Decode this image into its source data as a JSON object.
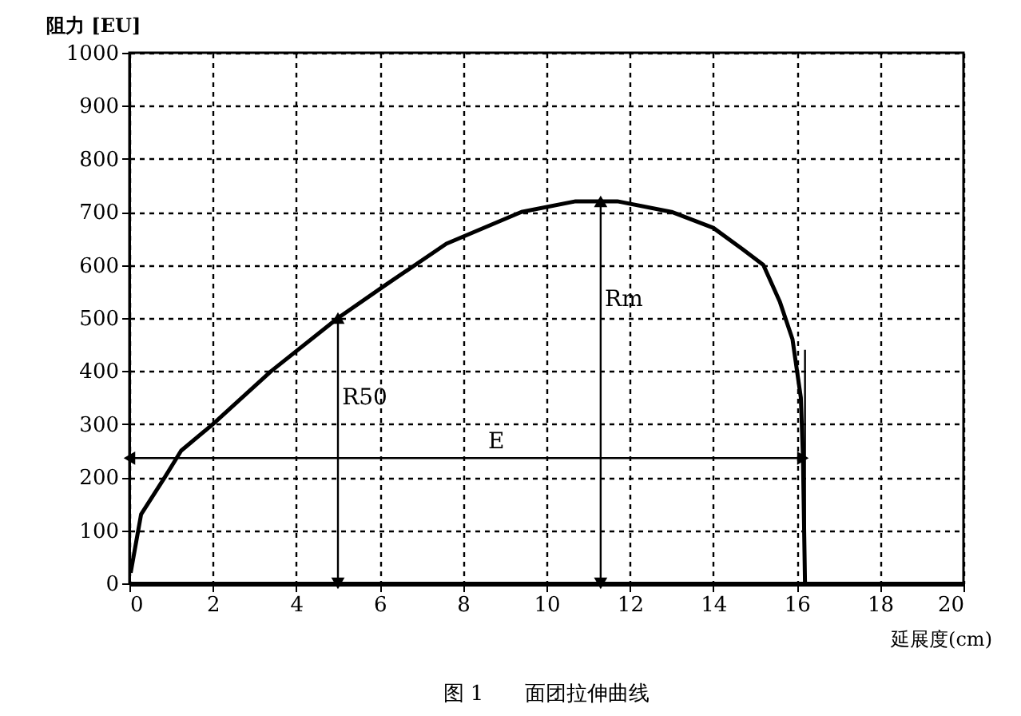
{
  "chart_data": {
    "type": "line",
    "title": "图 1　　面团拉伸曲线",
    "xlabel": "延展度(cm)",
    "ylabel": "阻力 [EU]",
    "xlim": [
      0,
      20
    ],
    "ylim": [
      0,
      1000
    ],
    "xticks": [
      0,
      2,
      4,
      6,
      8,
      10,
      12,
      14,
      16,
      18,
      20
    ],
    "yticks": [
      0,
      100,
      200,
      300,
      400,
      500,
      600,
      700,
      800,
      900,
      1000
    ],
    "grid": true,
    "series": [
      {
        "color": "#000000",
        "marker": "none",
        "x": [
          0.03,
          0.28,
          0.85,
          1.24,
          2.0,
          3.4,
          5.0,
          6.1,
          7.6,
          9.4,
          10.7,
          11.7,
          13.0,
          14.0,
          14.7,
          15.2,
          15.6,
          15.9,
          16.1,
          16.15,
          16.2
        ],
        "values": [
          20,
          130,
          200,
          250,
          300,
          400,
          500,
          560,
          640,
          700,
          720,
          720,
          700,
          670,
          630,
          600,
          530,
          460,
          350,
          240,
          0
        ]
      },
      {
        "color": "#000000",
        "marker": "none",
        "x": [
          16.2,
          16.2
        ],
        "values": [
          0,
          440
        ]
      },
      {
        "color": "#000000",
        "marker": "triangle",
        "x": [
          5.0,
          5.0
        ],
        "values": [
          0,
          500
        ]
      },
      {
        "color": "#000000",
        "marker": "triangle",
        "x": [
          11.3,
          11.3
        ],
        "values": [
          0,
          720
        ]
      },
      {
        "color": "#000000",
        "marker": "triangle",
        "x": [
          0,
          16.15
        ],
        "values": [
          236,
          236
        ]
      }
    ],
    "annotations": [
      {
        "text": "R50",
        "x": 5.1,
        "y": 350
      },
      {
        "text": "Rm",
        "x": 11.4,
        "y": 535
      },
      {
        "text": "E",
        "x": 8.6,
        "y": 236
      }
    ]
  }
}
